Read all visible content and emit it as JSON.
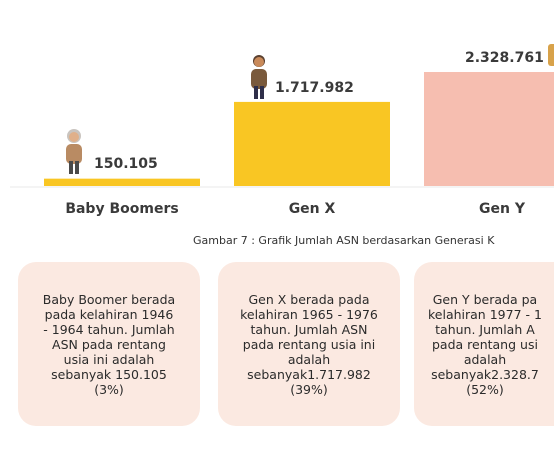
{
  "chart_data": {
    "type": "bar",
    "categories": [
      "Baby Boomers",
      "Gen X",
      "Gen Y"
    ],
    "values": [
      150105,
      1717982,
      2328761
    ],
    "value_labels": [
      "150.105",
      "1.717.982",
      "2.328.761"
    ],
    "colors": [
      "#f9c623",
      "#f9c623",
      "#f6beb0"
    ],
    "caption": "Gambar 7 : Grafik Jumlah ASN berdasarkan Generasi K",
    "ylim": [
      0,
      2328761
    ]
  },
  "cards": [
    {
      "text": "Baby Boomer berada\npada kelahiran 1946\n- 1964 tahun. Jumlah\nASN pada rentang\nusia ini adalah\nsebanyak 150.105\n(3%)"
    },
    {
      "text": "Gen X berada pada\nkelahiran 1965 - 1976\ntahun. Jumlah ASN\npada rentang usia ini\nadalah\nsebanyak1.717.982\n(39%)"
    },
    {
      "text": "Gen Y berada pa\nkelahiran 1977 - 1\ntahun. Jumlah A\npada rentang usi\nadalah\nsebanyak2.328.7\n(52%)"
    }
  ],
  "icons": [
    "elderly-person-icon",
    "middle-aged-person-icon",
    "young-person-icon"
  ]
}
